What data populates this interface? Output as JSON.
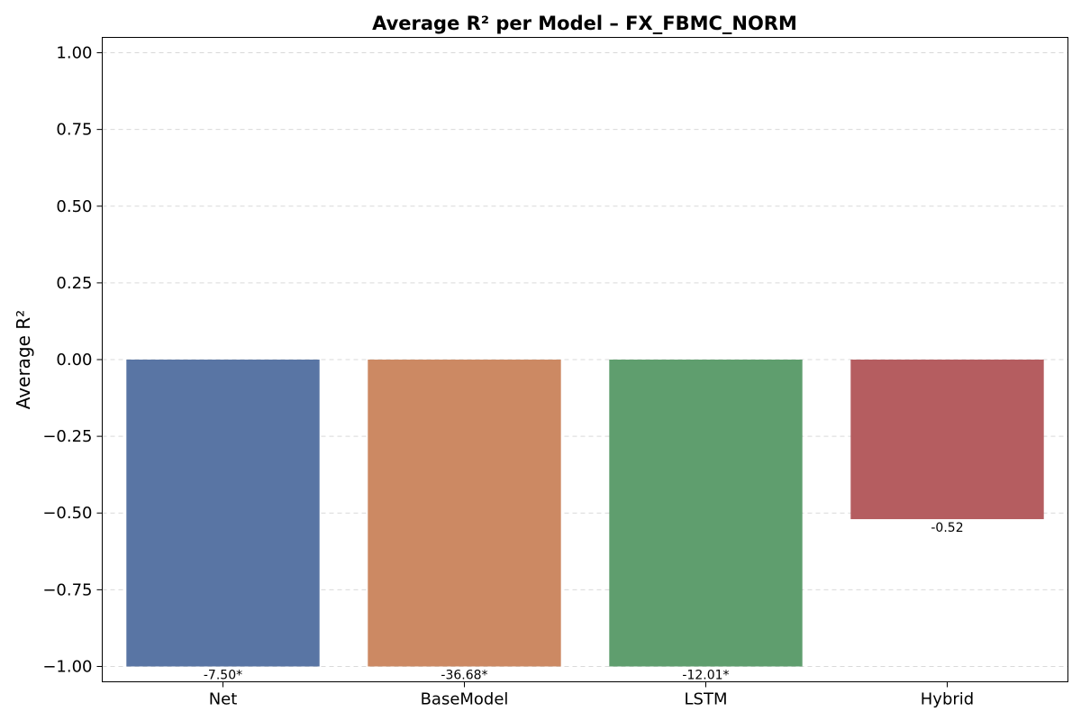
{
  "chart_data": {
    "type": "bar",
    "title": "Average R² per Model – FX_FBMC_NORM",
    "xlabel": "",
    "ylabel": "Average R²",
    "ylim": [
      -1.05,
      1.05
    ],
    "yticks": [
      1.0,
      0.75,
      0.5,
      0.25,
      0.0,
      -0.25,
      -0.5,
      -0.75,
      -1.0
    ],
    "ytick_labels": [
      "1.00",
      "0.75",
      "0.50",
      "0.25",
      "0.00",
      "−0.25",
      "−0.50",
      "−0.75",
      "−1.00"
    ],
    "categories": [
      "Net",
      "BaseModel",
      "LSTM",
      "Hybrid"
    ],
    "values": [
      -7.5,
      -36.68,
      -12.01,
      -0.52
    ],
    "clip_min": -1.0,
    "data_labels": [
      "-7.50*",
      "-36.68*",
      "-12.01*",
      "-0.52"
    ],
    "colors": [
      "#5975a4",
      "#cc8963",
      "#5f9e6e",
      "#b55d60"
    ],
    "grid": true,
    "grid_axis": "y",
    "legend": "none"
  }
}
